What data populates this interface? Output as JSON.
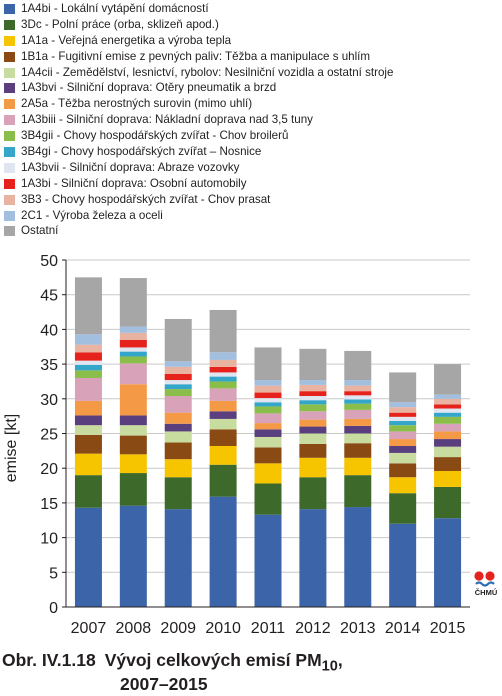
{
  "chart_data": {
    "type": "bar",
    "stacked": true,
    "categories": [
      "2007",
      "2008",
      "2009",
      "2010",
      "2011",
      "2012",
      "2013",
      "2014",
      "2015"
    ],
    "ylabel": "emise [kt]",
    "ylim": [
      0,
      50
    ],
    "yticks": [
      "0",
      "5",
      "10",
      "15",
      "20",
      "25",
      "30",
      "35",
      "40",
      "45",
      "50"
    ],
    "legend_position": "top",
    "series": [
      {
        "name": "1A4bi - Lokální vytápění domácností",
        "color": "#3c64a8",
        "values": [
          14.3,
          14.6,
          14.1,
          15.9,
          13.3,
          14.1,
          14.4,
          12.0,
          12.8
        ]
      },
      {
        "name": "3Dc - Polní práce (orba, sklizeň apod.)",
        "color": "#3d6a2b",
        "values": [
          4.7,
          4.7,
          4.6,
          4.6,
          4.5,
          4.6,
          4.6,
          4.4,
          4.5
        ]
      },
      {
        "name": "1A1a - Veřejná energetika a výroba tepla",
        "color": "#f7c500",
        "values": [
          3.1,
          2.7,
          2.6,
          2.7,
          2.9,
          2.8,
          2.5,
          2.3,
          2.3
        ]
      },
      {
        "name": "1B1a - Fugitivní emise z pevných paliv: Těžba a manipulace s uhlím",
        "color": "#8a4a14",
        "values": [
          2.7,
          2.7,
          2.4,
          2.4,
          2.3,
          2.0,
          2.1,
          2.0,
          2.0
        ]
      },
      {
        "name": "1A4cii - Zemědělství, lesnictví, rybolov: Nesilniční vozidla a ostatní stroje",
        "color": "#c8dca0",
        "values": [
          1.4,
          1.5,
          1.6,
          1.5,
          1.5,
          1.5,
          1.4,
          1.5,
          1.5
        ]
      },
      {
        "name": "1A3bvi - Silniční doprava: Otěry pneumatik a brzd",
        "color": "#5a3f7e",
        "values": [
          1.4,
          1.4,
          1.1,
          1.1,
          1.1,
          1.0,
          1.1,
          1.0,
          1.1
        ]
      },
      {
        "name": "2A5a - Těžba nerostných surovin (mimo uhlí)",
        "color": "#f49a46",
        "values": [
          2.1,
          4.5,
          1.6,
          1.5,
          0.9,
          1.0,
          1.0,
          1.0,
          1.1
        ]
      },
      {
        "name": "1A3biii - Silniční doprava: Nákladní doprava nad 3,5 tuny",
        "color": "#d8a2b8",
        "values": [
          3.3,
          3.0,
          2.4,
          1.8,
          1.4,
          1.2,
          1.3,
          1.1,
          1.1
        ]
      },
      {
        "name": "3B4gii - Chovy hospodářských zvířat - Chov broilerů",
        "color": "#8bbd4b",
        "values": [
          1.1,
          1.0,
          1.0,
          1.0,
          1.0,
          1.0,
          0.9,
          0.9,
          1.0
        ]
      },
      {
        "name": "3B4gi - Chovy hospodářských zvířat – Nosnice",
        "color": "#34a6c9",
        "values": [
          0.8,
          0.7,
          0.7,
          0.7,
          0.6,
          0.6,
          0.6,
          0.6,
          0.6
        ]
      },
      {
        "name": "1A3bvii - Silniční doprava: Abraze vozovky",
        "color": "#dfe6f1",
        "values": [
          0.6,
          0.6,
          0.6,
          0.6,
          0.6,
          0.6,
          0.6,
          0.6,
          0.6
        ]
      },
      {
        "name": "1A3bi - Silniční doprava: Osobní automobily",
        "color": "#e5231c",
        "values": [
          1.2,
          1.1,
          0.9,
          0.8,
          0.8,
          0.7,
          0.6,
          0.6,
          0.6
        ]
      },
      {
        "name": "3B3 - Chovy hospodářských zvířat - Chov prasat",
        "color": "#e8b3a1",
        "values": [
          1.1,
          1.0,
          1.0,
          1.0,
          1.0,
          0.9,
          0.8,
          0.8,
          0.8
        ]
      },
      {
        "name": "2C1 - Výroba železa a oceli",
        "color": "#a3bfe0",
        "values": [
          1.5,
          0.9,
          0.8,
          1.1,
          0.8,
          0.7,
          0.8,
          0.7,
          0.6
        ]
      },
      {
        "name": "Ostatní",
        "color": "#a6a6a6",
        "values": [
          8.2,
          7.0,
          6.1,
          6.1,
          4.7,
          4.5,
          4.2,
          4.3,
          4.4
        ]
      }
    ]
  },
  "caption": {
    "number": "Obr. IV.1.18",
    "title": "Vývoj celkových emisí PM",
    "subscript": "10",
    "title_suffix": ",",
    "years": "2007–2015"
  },
  "logo": {
    "text": "ČHMÚ",
    "colors": [
      "#e5231c",
      "#2e6db4"
    ]
  }
}
